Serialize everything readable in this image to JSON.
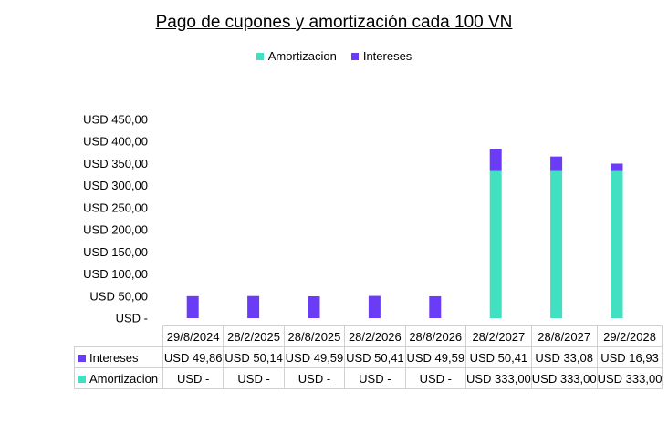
{
  "chart_data": {
    "type": "bar",
    "stacked": true,
    "title": "Pago de cupones y amortización cada 100 VN",
    "categories": [
      "29/8/2024",
      "28/2/2025",
      "28/8/2025",
      "28/2/2026",
      "28/8/2026",
      "28/2/2027",
      "28/8/2027",
      "29/2/2028"
    ],
    "series": [
      {
        "name": "Amortizacion",
        "color": "#40E0C0",
        "values": [
          0,
          0,
          0,
          0,
          0,
          333.0,
          333.0,
          333.0
        ],
        "labels": [
          "USD -",
          "USD -",
          "USD -",
          "USD -",
          "USD -",
          "USD 333,00",
          "USD 333,00",
          "USD 333,00"
        ]
      },
      {
        "name": "Intereses",
        "color": "#6A3CF5",
        "values": [
          49.86,
          50.14,
          49.59,
          50.41,
          49.59,
          50.41,
          33.08,
          16.93
        ],
        "labels": [
          "USD 49,86",
          "USD 50,14",
          "USD 49,59",
          "USD 50,41",
          "USD 49,59",
          "USD 50,41",
          "USD 33,08",
          "USD 16,93"
        ]
      }
    ],
    "ylim": [
      0,
      450
    ],
    "y_ticks": [
      0,
      50,
      100,
      150,
      200,
      250,
      300,
      350,
      400,
      450
    ],
    "y_tick_labels": [
      "USD -",
      "USD 50,00",
      "USD 100,00",
      "USD 150,00",
      "USD 200,00",
      "USD 250,00",
      "USD 300,00",
      "USD 350,00",
      "USD 400,00",
      "USD 450,00"
    ],
    "legend_position": "top",
    "legend_order": [
      "Amortizacion",
      "Intereses"
    ],
    "table_row_order": [
      "Intereses",
      "Amortizacion"
    ],
    "grid": false,
    "data_table": true
  }
}
